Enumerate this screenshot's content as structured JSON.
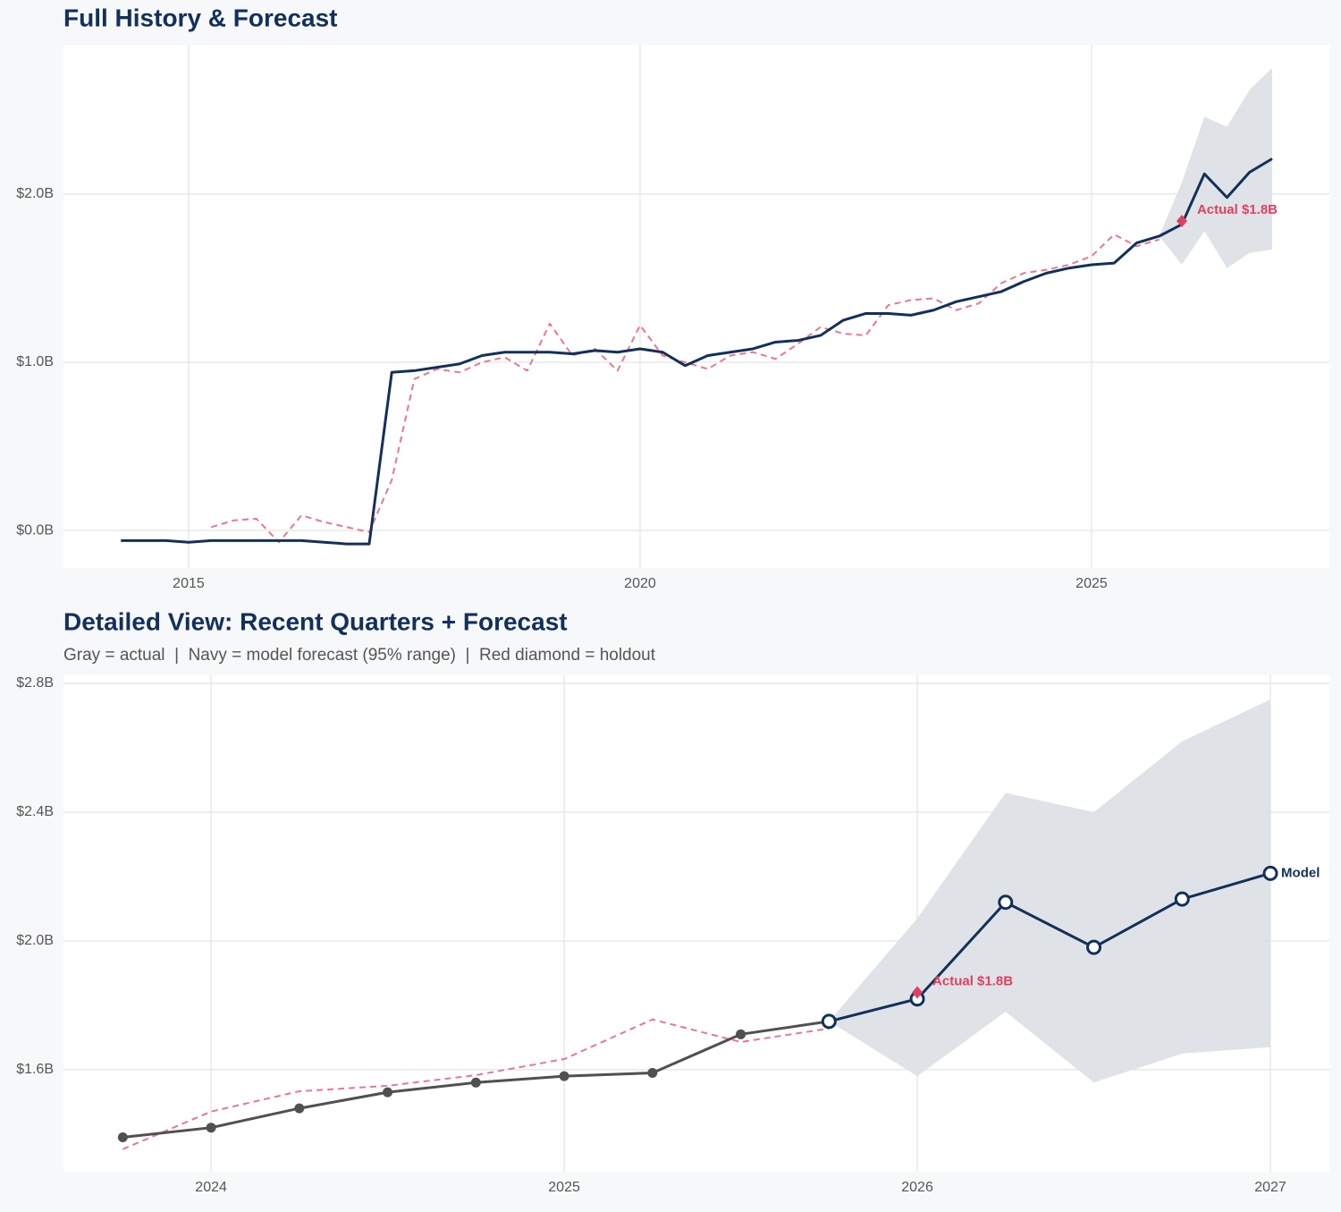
{
  "chart_data": [
    {
      "type": "line",
      "title": "Full History & Forecast",
      "x": [
        2014.25,
        2014.5,
        2014.75,
        2015.0,
        2015.25,
        2015.5,
        2015.75,
        2016.0,
        2016.25,
        2016.5,
        2016.75,
        2017.0,
        2017.25,
        2017.5,
        2017.75,
        2018.0,
        2018.25,
        2018.5,
        2018.75,
        2019.0,
        2019.25,
        2019.5,
        2019.75,
        2020.0,
        2020.25,
        2020.5,
        2020.75,
        2021.0,
        2021.25,
        2021.5,
        2021.75,
        2022.0,
        2022.25,
        2022.5,
        2022.75,
        2023.0,
        2023.25,
        2023.5,
        2023.75,
        2024.0,
        2024.25,
        2024.5,
        2024.75,
        2025.0,
        2025.25,
        2025.5,
        2025.75,
        2026.0,
        2026.25,
        2026.5,
        2026.75,
        2027.0
      ],
      "series": [
        {
          "color": "#e8788a",
          "dashed": true,
          "values": [
            null,
            null,
            null,
            null,
            0.02,
            0.06,
            0.07,
            -0.07,
            0.09,
            0.05,
            0.02,
            -0.01,
            0.3,
            0.9,
            0.96,
            0.94,
            1.0,
            1.03,
            0.95,
            1.23,
            1.04,
            1.08,
            0.95,
            1.22,
            1.04,
            1.0,
            0.96,
            1.04,
            1.06,
            1.02,
            1.11,
            1.21,
            1.17,
            1.16,
            1.34,
            1.37,
            1.38,
            1.31,
            1.35,
            1.47,
            1.53,
            1.55,
            1.58,
            1.63,
            1.76,
            1.69,
            1.73,
            null,
            null,
            null,
            null,
            null
          ]
        },
        {
          "color": "#12305a",
          "values": [
            -0.06,
            -0.06,
            -0.06,
            -0.07,
            -0.06,
            -0.06,
            -0.06,
            -0.06,
            -0.06,
            -0.07,
            -0.08,
            -0.08,
            0.94,
            0.95,
            0.97,
            0.99,
            1.04,
            1.06,
            1.06,
            1.06,
            1.05,
            1.07,
            1.06,
            1.08,
            1.06,
            0.98,
            1.04,
            1.06,
            1.08,
            1.12,
            1.13,
            1.16,
            1.25,
            1.29,
            1.29,
            1.28,
            1.31,
            1.36,
            1.39,
            1.42,
            1.48,
            1.53,
            1.56,
            1.58,
            1.59,
            1.71,
            1.75,
            1.82,
            2.12,
            1.98,
            2.13,
            2.21
          ]
        }
      ],
      "band_color": "#dde1e7",
      "band_upper": [
        null,
        null,
        null,
        null,
        null,
        null,
        null,
        null,
        null,
        null,
        null,
        null,
        null,
        null,
        null,
        null,
        null,
        null,
        null,
        null,
        null,
        null,
        null,
        null,
        null,
        null,
        null,
        null,
        null,
        null,
        null,
        null,
        null,
        null,
        null,
        null,
        null,
        null,
        null,
        null,
        null,
        null,
        null,
        null,
        null,
        null,
        1.75,
        2.07,
        2.46,
        2.4,
        2.62,
        2.75
      ],
      "band_lower": [
        null,
        null,
        null,
        null,
        null,
        null,
        null,
        null,
        null,
        null,
        null,
        null,
        null,
        null,
        null,
        null,
        null,
        null,
        null,
        null,
        null,
        null,
        null,
        null,
        null,
        null,
        null,
        null,
        null,
        null,
        null,
        null,
        null,
        null,
        null,
        null,
        null,
        null,
        null,
        null,
        null,
        null,
        null,
        null,
        null,
        null,
        1.75,
        1.58,
        1.78,
        1.56,
        1.65,
        1.67
      ],
      "holdout": {
        "x": 2026.0,
        "value": 1.84,
        "label": "Actual $1.8B",
        "color": "#e0405f"
      },
      "xlim": [
        2013.614,
        2027.634
      ],
      "xticks": [
        2015,
        2020,
        2025
      ],
      "ylim": [
        -0.223,
        2.888
      ],
      "yticks": [
        {
          "value": 0,
          "label": "$0.0B"
        },
        {
          "value": 1,
          "label": "$1.0B"
        },
        {
          "value": 2,
          "label": "$2.0B"
        }
      ],
      "grid": true
    },
    {
      "type": "line",
      "title": "Detailed View: Recent Quarters + Forecast",
      "subtitle": "Gray = actual  |  Navy = model forecast (95% range)  |  Red diamond = holdout",
      "x": [
        2023.75,
        2024.0,
        2024.25,
        2024.5,
        2024.75,
        2025.0,
        2025.25,
        2025.5,
        2025.75,
        2026.0,
        2026.25,
        2026.5,
        2026.75,
        2027.0
      ],
      "series": [
        {
          "color": "#e8788a",
          "dashed": true,
          "values": [
            1.353,
            1.47,
            1.533,
            1.55,
            1.583,
            1.633,
            1.756,
            1.686,
            1.728,
            null,
            null,
            null,
            null,
            null
          ]
        },
        {
          "color": "#505050",
          "marker": "filled",
          "values": [
            1.39,
            1.42,
            1.48,
            1.53,
            1.56,
            1.58,
            1.59,
            1.71,
            1.75,
            null,
            null,
            null,
            null,
            null
          ]
        },
        {
          "color": "#12305a",
          "marker": "open",
          "end_label": "Model",
          "values": [
            null,
            null,
            null,
            null,
            null,
            null,
            null,
            null,
            1.75,
            1.82,
            2.12,
            1.98,
            2.13,
            2.21
          ]
        }
      ],
      "band_color": "#dde1e7",
      "band_upper": [
        null,
        null,
        null,
        null,
        null,
        null,
        null,
        null,
        1.75,
        2.07,
        2.46,
        2.4,
        2.62,
        2.75
      ],
      "band_lower": [
        null,
        null,
        null,
        null,
        null,
        null,
        null,
        null,
        1.75,
        1.58,
        1.78,
        1.56,
        1.65,
        1.67
      ],
      "holdout": {
        "x": 2026.0,
        "value": 1.84,
        "label": "Actual $1.8B",
        "color": "#e0405f"
      },
      "xlim": [
        2023.582,
        2027.167
      ],
      "xticks": [
        2024,
        2025,
        2026,
        2027
      ],
      "ylim": [
        1.283,
        2.825
      ],
      "yticks": [
        {
          "value": 1.6,
          "label": "$1.6B"
        },
        {
          "value": 2.0,
          "label": "$2.0B"
        },
        {
          "value": 2.4,
          "label": "$2.4B"
        },
        {
          "value": 2.8,
          "label": "$2.8B"
        }
      ],
      "grid": true
    }
  ]
}
